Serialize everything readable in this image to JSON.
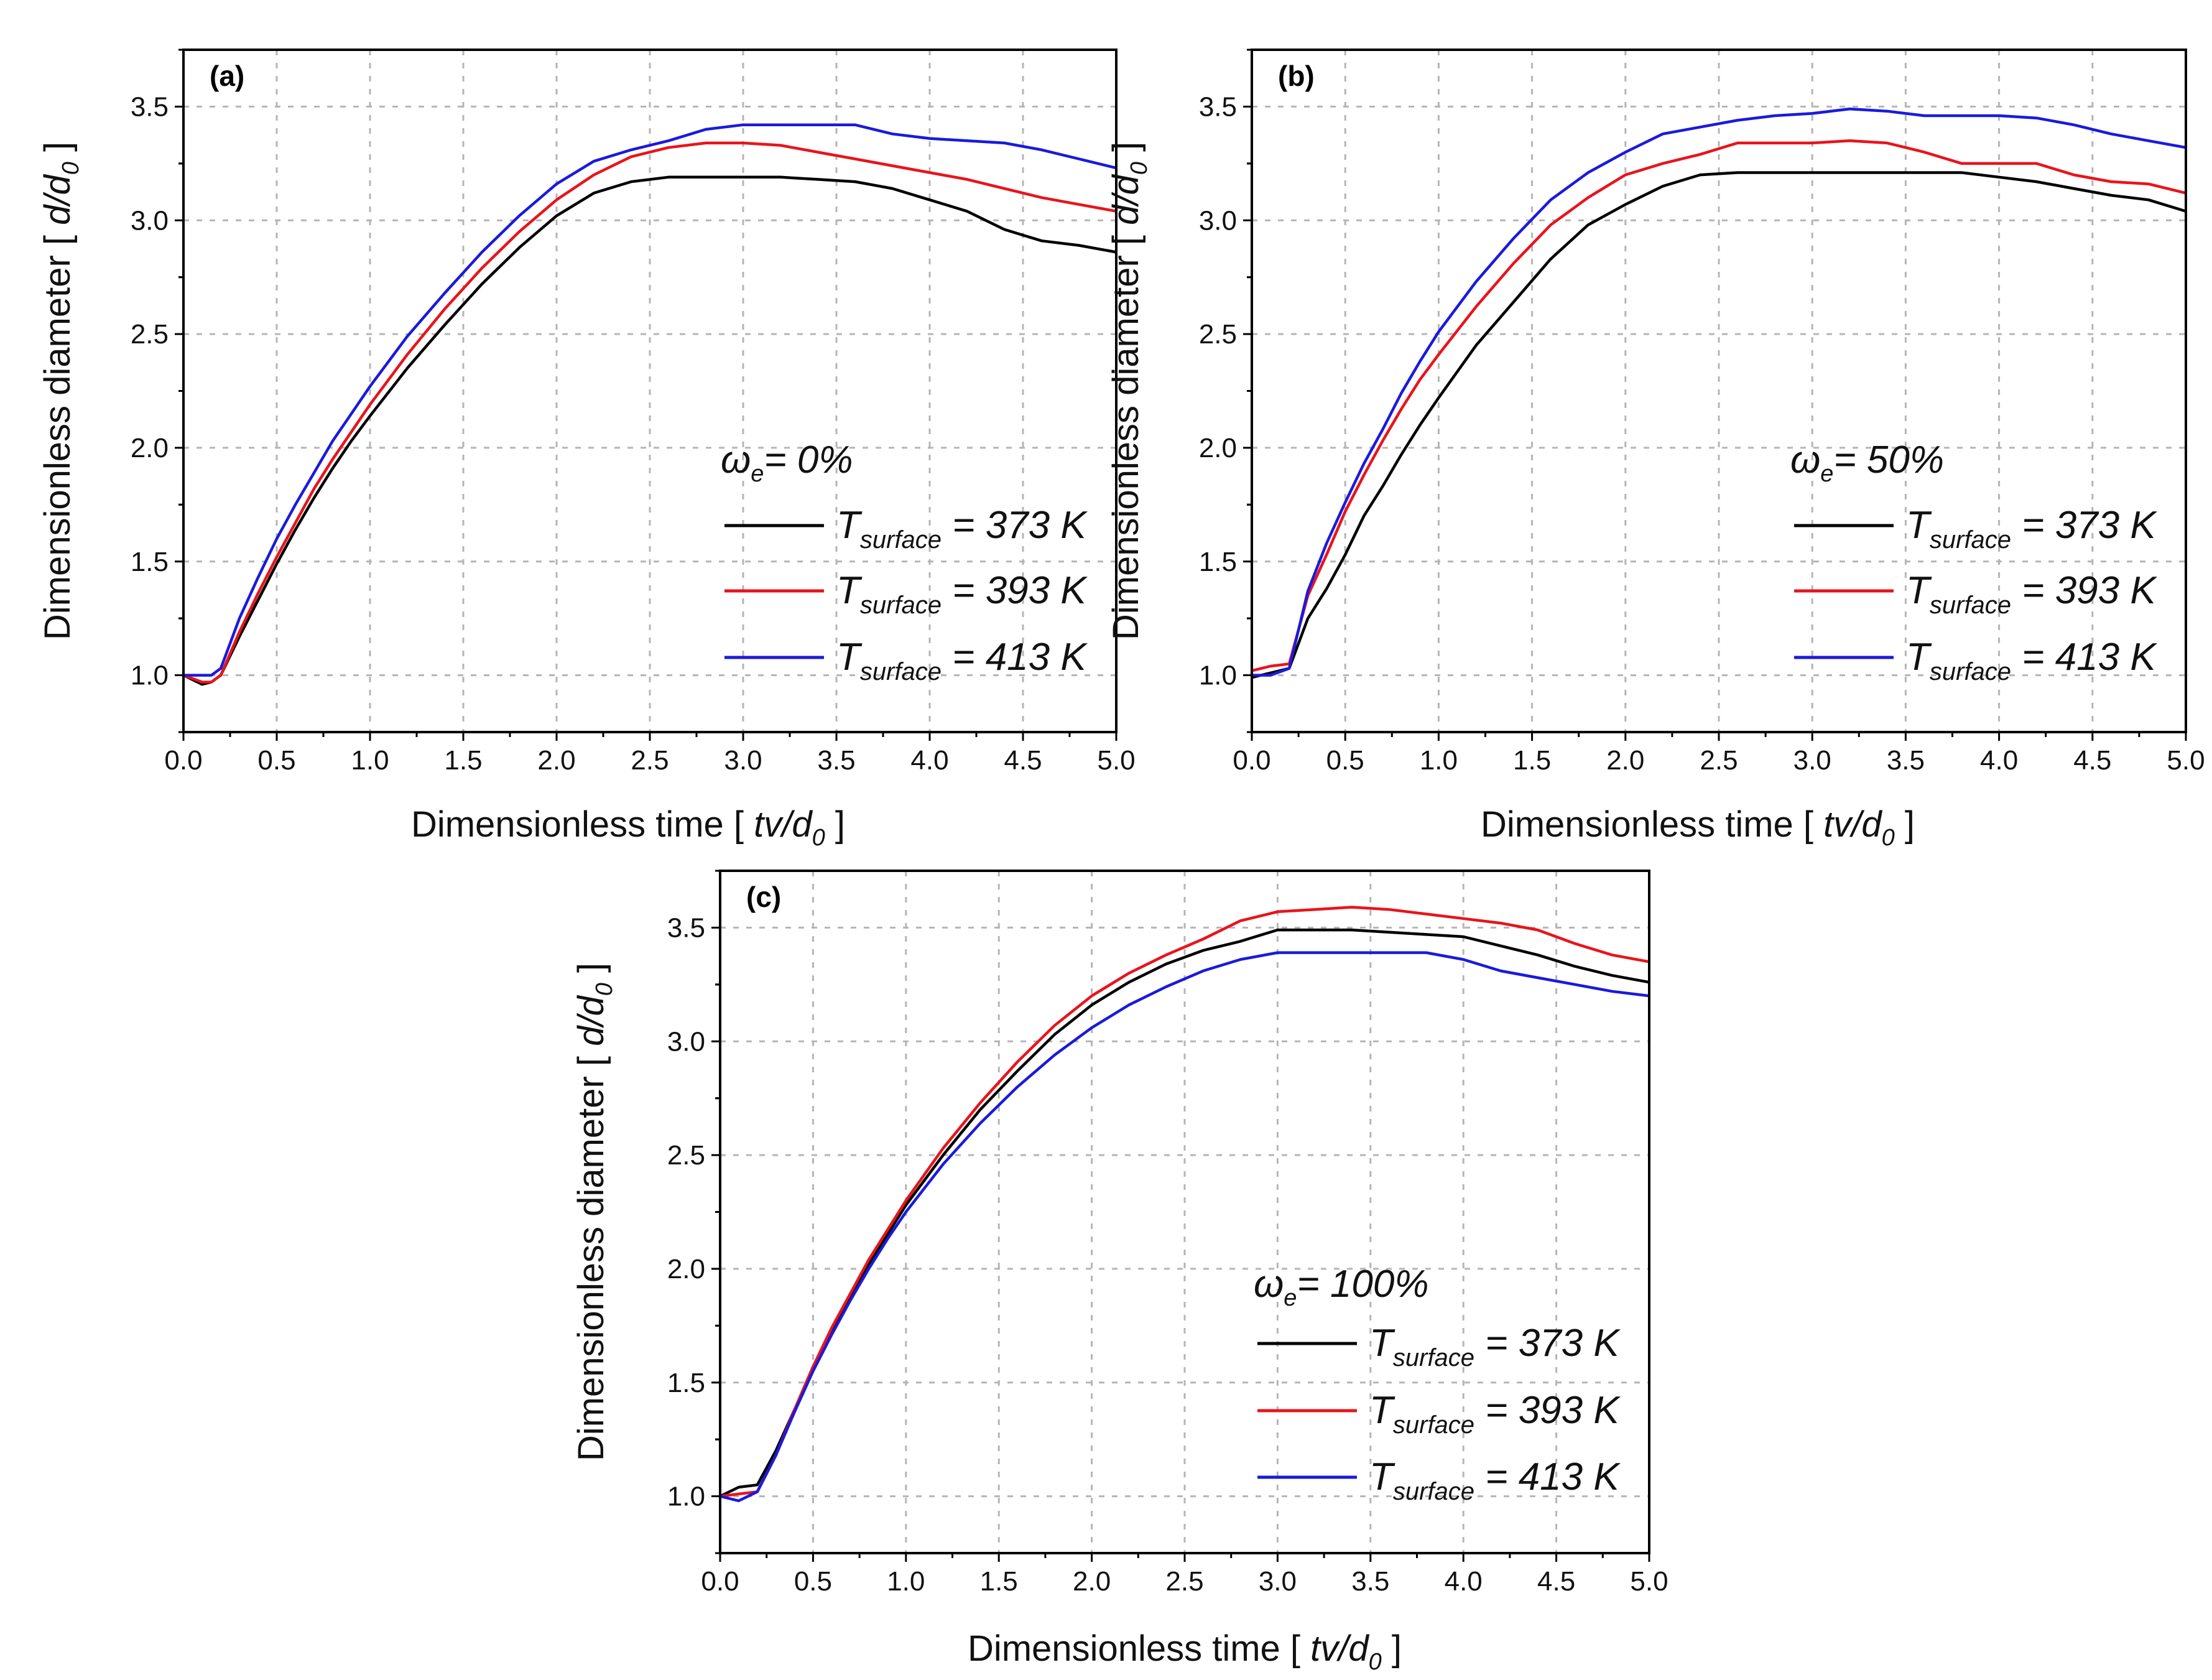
{
  "figure": {
    "x_axis_title_prefix": "Dimensionless time [ ",
    "x_axis_title_var": "tv/d",
    "x_axis_title_sub": "0",
    "x_axis_title_suffix": " ]",
    "y_axis_title_prefix": "Dimensionless  diameter [ ",
    "y_axis_title_var": "d/d",
    "y_axis_title_sub": "0",
    "y_axis_title_suffix": " ]",
    "legend_symbol": "T",
    "legend_subscript": "surface",
    "legend_omega_symbol": "ω",
    "legend_omega_sub": "e"
  },
  "colors": {
    "black": "#000000",
    "red": "#e8141c",
    "blue": "#1a1adc"
  },
  "chart_data": [
    {
      "panel_label": "(a)",
      "type": "line",
      "omega_label": "= 0%",
      "xlim": [
        0,
        5
      ],
      "ylim": [
        0.75,
        3.75
      ],
      "x_ticks": [
        "0.0",
        "0.5",
        "1.0",
        "1.5",
        "2.0",
        "2.5",
        "3.0",
        "3.5",
        "4.0",
        "4.5",
        "5.0"
      ],
      "y_ticks": [
        "1.0",
        "1.5",
        "2.0",
        "2.5",
        "3.0",
        "3.5"
      ],
      "grid": true,
      "legend_position": "lower-right",
      "series": [
        {
          "name": "= 373 K",
          "color": "#000000",
          "x": [
            0,
            0.1,
            0.15,
            0.2,
            0.3,
            0.4,
            0.5,
            0.6,
            0.7,
            0.8,
            0.9,
            1.0,
            1.2,
            1.4,
            1.6,
            1.8,
            2.0,
            2.2,
            2.4,
            2.6,
            2.8,
            3.0,
            3.2,
            3.4,
            3.6,
            3.8,
            4.0,
            4.2,
            4.4,
            4.6,
            4.8,
            5.0
          ],
          "y": [
            1.0,
            0.96,
            0.97,
            1.0,
            1.17,
            1.33,
            1.49,
            1.64,
            1.78,
            1.91,
            2.03,
            2.14,
            2.35,
            2.54,
            2.72,
            2.88,
            3.02,
            3.12,
            3.17,
            3.19,
            3.19,
            3.19,
            3.19,
            3.18,
            3.17,
            3.14,
            3.09,
            3.04,
            2.96,
            2.91,
            2.89,
            2.86
          ]
        },
        {
          "name": "= 393 K",
          "color": "#e8141c",
          "x": [
            0,
            0.1,
            0.15,
            0.2,
            0.3,
            0.4,
            0.5,
            0.6,
            0.7,
            0.8,
            0.9,
            1.0,
            1.2,
            1.4,
            1.6,
            1.8,
            2.0,
            2.2,
            2.4,
            2.6,
            2.8,
            3.0,
            3.2,
            3.4,
            3.6,
            3.8,
            4.0,
            4.2,
            4.4,
            4.6,
            4.8,
            5.0
          ],
          "y": [
            1.0,
            0.97,
            0.97,
            1.0,
            1.19,
            1.36,
            1.52,
            1.67,
            1.82,
            1.95,
            2.07,
            2.19,
            2.41,
            2.61,
            2.79,
            2.95,
            3.09,
            3.2,
            3.28,
            3.32,
            3.34,
            3.34,
            3.33,
            3.3,
            3.27,
            3.24,
            3.21,
            3.18,
            3.14,
            3.1,
            3.07,
            3.04
          ]
        },
        {
          "name": "= 413 K",
          "color": "#1a1adc",
          "x": [
            0,
            0.1,
            0.15,
            0.2,
            0.3,
            0.4,
            0.5,
            0.6,
            0.7,
            0.8,
            0.9,
            1.0,
            1.2,
            1.4,
            1.6,
            1.8,
            2.0,
            2.2,
            2.4,
            2.6,
            2.8,
            3.0,
            3.2,
            3.4,
            3.6,
            3.8,
            4.0,
            4.2,
            4.4,
            4.6,
            4.8,
            5.0
          ],
          "y": [
            1.0,
            1.0,
            1.0,
            1.03,
            1.25,
            1.43,
            1.6,
            1.75,
            1.89,
            2.03,
            2.15,
            2.27,
            2.49,
            2.68,
            2.86,
            3.02,
            3.16,
            3.26,
            3.31,
            3.35,
            3.4,
            3.42,
            3.42,
            3.42,
            3.42,
            3.38,
            3.36,
            3.35,
            3.34,
            3.31,
            3.27,
            3.23
          ]
        }
      ]
    },
    {
      "panel_label": "(b)",
      "type": "line",
      "omega_label": "= 50%",
      "xlim": [
        0,
        5
      ],
      "ylim": [
        0.75,
        3.75
      ],
      "x_ticks": [
        "0.0",
        "0.5",
        "1.0",
        "1.5",
        "2.0",
        "2.5",
        "3.0",
        "3.5",
        "4.0",
        "4.5",
        "5.0"
      ],
      "y_ticks": [
        "1.0",
        "1.5",
        "2.0",
        "2.5",
        "3.0",
        "3.5"
      ],
      "grid": true,
      "legend_position": "lower-right",
      "series": [
        {
          "name": "= 373 K",
          "color": "#000000",
          "x": [
            0,
            0.1,
            0.2,
            0.3,
            0.4,
            0.5,
            0.6,
            0.7,
            0.8,
            0.9,
            1.0,
            1.2,
            1.4,
            1.6,
            1.8,
            2.0,
            2.2,
            2.4,
            2.6,
            2.8,
            3.0,
            3.2,
            3.4,
            3.6,
            3.8,
            4.0,
            4.2,
            4.4,
            4.6,
            4.8,
            5.0
          ],
          "y": [
            0.99,
            1.01,
            1.03,
            1.25,
            1.38,
            1.53,
            1.7,
            1.83,
            1.97,
            2.1,
            2.22,
            2.45,
            2.64,
            2.83,
            2.98,
            3.07,
            3.15,
            3.2,
            3.21,
            3.21,
            3.21,
            3.21,
            3.21,
            3.21,
            3.21,
            3.19,
            3.17,
            3.14,
            3.11,
            3.09,
            3.04
          ]
        },
        {
          "name": "= 393 K",
          "color": "#e8141c",
          "x": [
            0,
            0.1,
            0.2,
            0.3,
            0.4,
            0.5,
            0.6,
            0.7,
            0.8,
            0.9,
            1.0,
            1.2,
            1.4,
            1.6,
            1.8,
            2.0,
            2.2,
            2.4,
            2.6,
            2.8,
            3.0,
            3.2,
            3.4,
            3.6,
            3.8,
            4.0,
            4.2,
            4.4,
            4.6,
            4.8,
            5.0
          ],
          "y": [
            1.02,
            1.04,
            1.05,
            1.35,
            1.53,
            1.72,
            1.88,
            2.03,
            2.17,
            2.3,
            2.41,
            2.62,
            2.81,
            2.98,
            3.1,
            3.2,
            3.25,
            3.29,
            3.34,
            3.34,
            3.34,
            3.35,
            3.34,
            3.3,
            3.25,
            3.25,
            3.25,
            3.2,
            3.17,
            3.16,
            3.12
          ]
        },
        {
          "name": "= 413 K",
          "color": "#1a1adc",
          "x": [
            0,
            0.1,
            0.2,
            0.3,
            0.4,
            0.5,
            0.6,
            0.7,
            0.8,
            0.9,
            1.0,
            1.2,
            1.4,
            1.6,
            1.8,
            2.0,
            2.2,
            2.4,
            2.6,
            2.8,
            3.0,
            3.2,
            3.4,
            3.6,
            3.8,
            4.0,
            4.2,
            4.4,
            4.6,
            4.8,
            5.0
          ],
          "y": [
            1.0,
            1.0,
            1.03,
            1.37,
            1.58,
            1.76,
            1.93,
            2.08,
            2.24,
            2.38,
            2.51,
            2.73,
            2.92,
            3.09,
            3.21,
            3.3,
            3.38,
            3.41,
            3.44,
            3.46,
            3.47,
            3.49,
            3.48,
            3.46,
            3.46,
            3.46,
            3.45,
            3.42,
            3.38,
            3.35,
            3.32
          ]
        }
      ]
    },
    {
      "panel_label": "(c)",
      "type": "line",
      "omega_label": "= 100%",
      "xlim": [
        0,
        5
      ],
      "ylim": [
        0.75,
        3.75
      ],
      "x_ticks": [
        "0.0",
        "0.5",
        "1.0",
        "1.5",
        "2.0",
        "2.5",
        "3.0",
        "3.5",
        "4.0",
        "4.5",
        "5.0"
      ],
      "y_ticks": [
        "1.0",
        "1.5",
        "2.0",
        "2.5",
        "3.0",
        "3.5"
      ],
      "grid": true,
      "legend_position": "lower-right",
      "series": [
        {
          "name": "= 373 K",
          "color": "#000000",
          "x": [
            0,
            0.1,
            0.2,
            0.3,
            0.4,
            0.5,
            0.6,
            0.7,
            0.8,
            0.9,
            1.0,
            1.2,
            1.4,
            1.6,
            1.8,
            2.0,
            2.2,
            2.4,
            2.6,
            2.8,
            3.0,
            3.2,
            3.4,
            3.6,
            3.8,
            4.0,
            4.2,
            4.4,
            4.6,
            4.8,
            5.0
          ],
          "y": [
            1.0,
            1.04,
            1.05,
            1.2,
            1.38,
            1.56,
            1.73,
            1.88,
            2.02,
            2.15,
            2.28,
            2.5,
            2.7,
            2.87,
            3.03,
            3.16,
            3.26,
            3.34,
            3.4,
            3.44,
            3.49,
            3.49,
            3.49,
            3.48,
            3.47,
            3.46,
            3.42,
            3.38,
            3.33,
            3.29,
            3.26
          ]
        },
        {
          "name": "= 393 K",
          "color": "#e8141c",
          "x": [
            0,
            0.1,
            0.2,
            0.3,
            0.4,
            0.5,
            0.6,
            0.7,
            0.8,
            0.9,
            1.0,
            1.2,
            1.4,
            1.6,
            1.8,
            2.0,
            2.2,
            2.4,
            2.6,
            2.8,
            3.0,
            3.2,
            3.4,
            3.6,
            3.8,
            4.0,
            4.2,
            4.4,
            4.6,
            4.8,
            5.0
          ],
          "y": [
            1.0,
            1.01,
            1.02,
            1.18,
            1.38,
            1.57,
            1.74,
            1.89,
            2.04,
            2.17,
            2.3,
            2.53,
            2.73,
            2.91,
            3.07,
            3.2,
            3.3,
            3.38,
            3.45,
            3.53,
            3.57,
            3.58,
            3.59,
            3.58,
            3.56,
            3.54,
            3.52,
            3.49,
            3.43,
            3.38,
            3.35
          ]
        },
        {
          "name": "= 413 K",
          "color": "#1a1adc",
          "x": [
            0,
            0.1,
            0.2,
            0.3,
            0.4,
            0.5,
            0.6,
            0.7,
            0.8,
            0.9,
            1.0,
            1.2,
            1.4,
            1.6,
            1.8,
            2.0,
            2.2,
            2.4,
            2.6,
            2.8,
            3.0,
            3.2,
            3.4,
            3.6,
            3.8,
            4.0,
            4.2,
            4.4,
            4.6,
            4.8,
            5.0
          ],
          "y": [
            1.0,
            0.98,
            1.02,
            1.18,
            1.37,
            1.55,
            1.71,
            1.86,
            2.0,
            2.13,
            2.25,
            2.46,
            2.64,
            2.8,
            2.94,
            3.06,
            3.16,
            3.24,
            3.31,
            3.36,
            3.39,
            3.39,
            3.39,
            3.39,
            3.39,
            3.36,
            3.31,
            3.28,
            3.25,
            3.22,
            3.2
          ]
        }
      ]
    }
  ]
}
